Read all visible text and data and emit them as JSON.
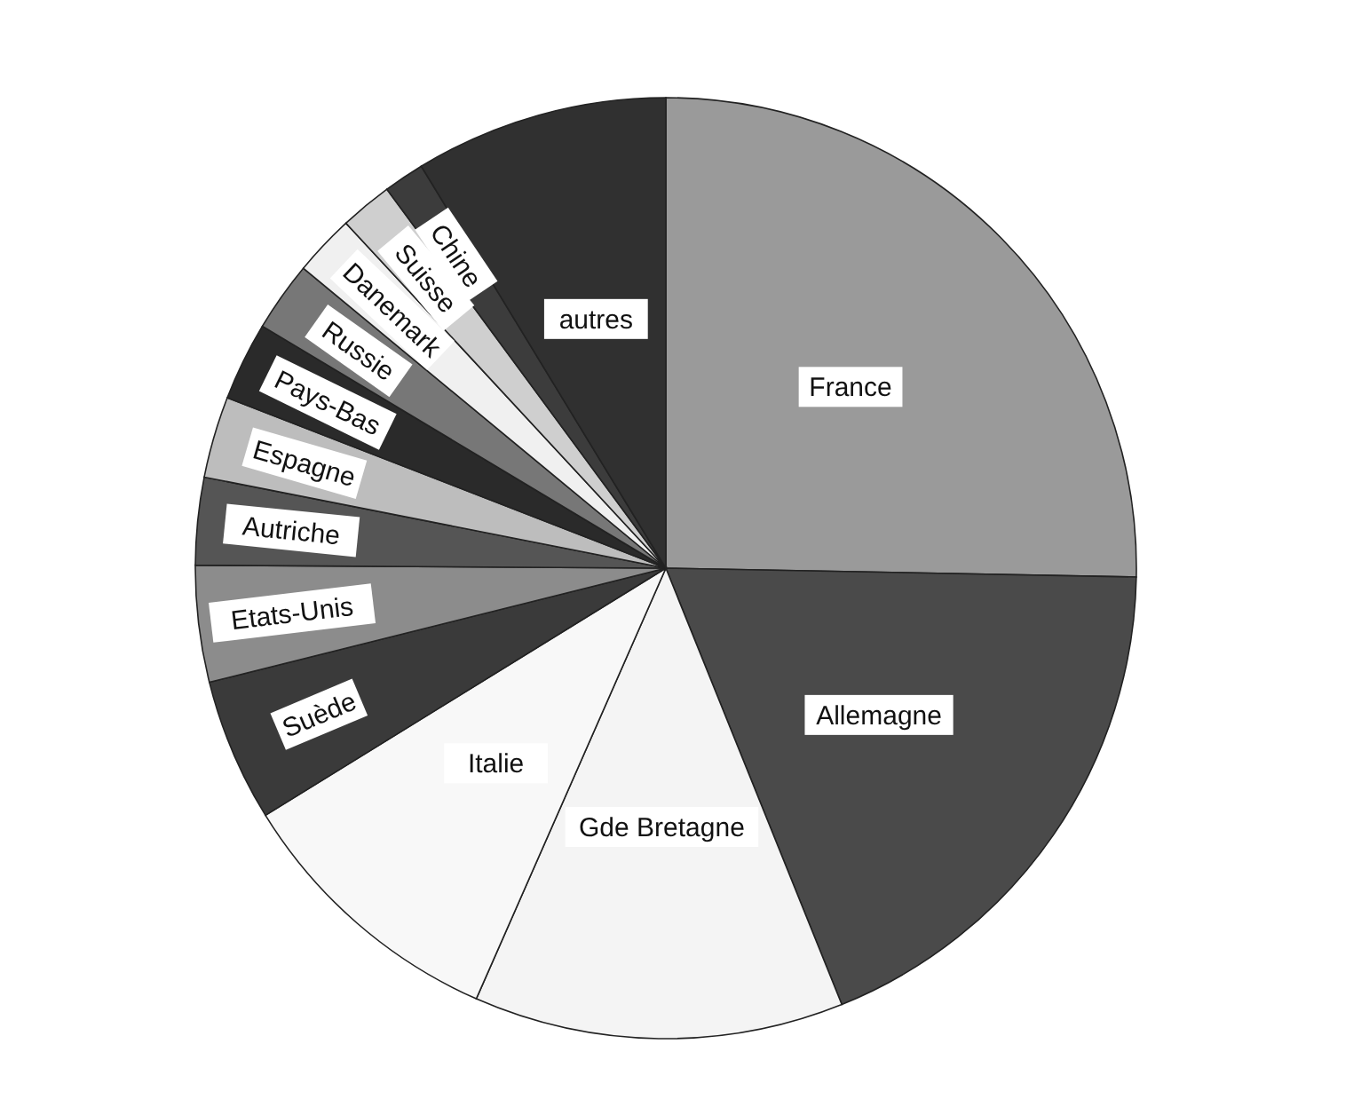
{
  "chart_data": {
    "type": "pie",
    "categories": [
      "France",
      "Allemagne",
      "Gde Bretagne",
      "Italie",
      "Suède",
      "Etats-Unis",
      "Autriche",
      "Espagne",
      "Pays-Bas",
      "Russie",
      "Danemark",
      "Suisse",
      "Chine",
      "autres"
    ],
    "values": [
      25.3,
      18.6,
      12.7,
      9.6,
      4.9,
      4.0,
      3.0,
      2.8,
      2.7,
      2.4,
      2.1,
      1.8,
      1.4,
      8.7
    ],
    "colors": [
      "#9a9a9a",
      "#4a4a4a",
      "#f4f4f4",
      "#f8f8f8",
      "#3a3a3a",
      "#8c8c8c",
      "#555555",
      "#bdbdbd",
      "#2a2a2a",
      "#777777",
      "#f0f0f0",
      "#cfcfcf",
      "#3c3c3c",
      "#303030"
    ]
  }
}
